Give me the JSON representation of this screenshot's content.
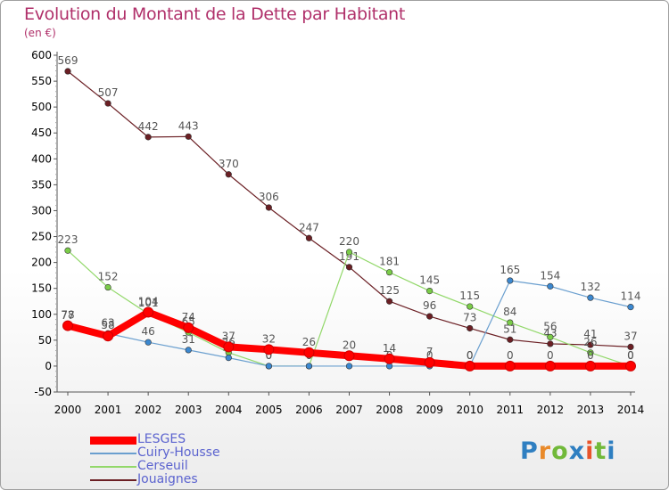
{
  "title": "Evolution du Montant de la Dette par Habitant",
  "unit_label": "(en €)",
  "logo": {
    "chars": [
      "P",
      "r",
      "o",
      "x",
      "i",
      "t",
      "i"
    ],
    "colors": [
      "#2f7fc1",
      "#e98a2a",
      "#71b93a",
      "#2f7fc1",
      "#e8542b",
      "#71b93a",
      "#2f7fc1"
    ]
  },
  "chart_data": {
    "type": "line",
    "title": "Evolution du Montant de la Dette par Habitant",
    "ylabel": "(en €)",
    "xlabel": "",
    "x": [
      "2000",
      "2001",
      "2002",
      "2003",
      "2004",
      "2005",
      "2006",
      "2007",
      "2008",
      "2009",
      "2010",
      "2011",
      "2012",
      "2013",
      "2014"
    ],
    "ylim": [
      -50,
      600
    ],
    "yticks": [
      -50,
      0,
      50,
      100,
      150,
      200,
      250,
      300,
      350,
      400,
      450,
      500,
      550,
      600
    ],
    "grid": false,
    "legend_position": "bottom-left",
    "series": [
      {
        "name": "Jouaignes",
        "color": "#6b1f24",
        "marker": "#6b1f24",
        "width": 1.2,
        "values": [
          569,
          507,
          442,
          443,
          370,
          306,
          247,
          191,
          125,
          96,
          73,
          51,
          43,
          41,
          37
        ],
        "labels": [
          "569",
          "507",
          "442",
          "443",
          "370",
          "306",
          "247",
          "191",
          "125",
          "96",
          "73",
          "51",
          "43",
          "41",
          "37"
        ]
      },
      {
        "name": "Cerseuil",
        "color": "#92d86a",
        "marker": "#7acc48",
        "width": 1.2,
        "values": [
          223,
          152,
          101,
          65,
          26,
          0,
          0,
          220,
          181,
          145,
          115,
          84,
          56,
          26,
          0
        ],
        "labels": [
          "223",
          "152",
          "101",
          "65",
          "26",
          "0",
          "0",
          "220",
          "181",
          "145",
          "115",
          "84",
          "56",
          "26",
          "0"
        ]
      },
      {
        "name": "Cuiry-Housse",
        "color": "#6a9fcf",
        "marker": "#3b88d0",
        "width": 1.2,
        "values": [
          77,
          63,
          46,
          31,
          16,
          0,
          0,
          0,
          0,
          0,
          0,
          165,
          154,
          132,
          114
        ],
        "labels": [
          "77",
          "63",
          "46",
          "31",
          "16",
          "0",
          "0",
          "0",
          "0",
          "0",
          "0",
          "165",
          "154",
          "132",
          "114"
        ]
      },
      {
        "name": "LESGES",
        "color": "#ff0000",
        "marker": "#ff0000",
        "width": 8,
        "values": [
          78,
          58,
          104,
          74,
          37,
          32,
          26,
          20,
          14,
          7,
          0,
          0,
          0,
          0,
          0
        ],
        "labels": [
          "78",
          "58",
          "104",
          "74",
          "37",
          "32",
          "26",
          "20",
          "14",
          "7",
          "0",
          "0",
          "0",
          "0",
          "0"
        ]
      }
    ]
  },
  "legend": [
    {
      "label": "LESGES",
      "color": "#ff0000",
      "width": 9
    },
    {
      "label": "Cuiry-Housse",
      "color": "#6a9fcf",
      "width": 2
    },
    {
      "label": "Cerseuil",
      "color": "#92d86a",
      "width": 2
    },
    {
      "label": "Jouaignes",
      "color": "#6b1f24",
      "width": 2
    }
  ]
}
